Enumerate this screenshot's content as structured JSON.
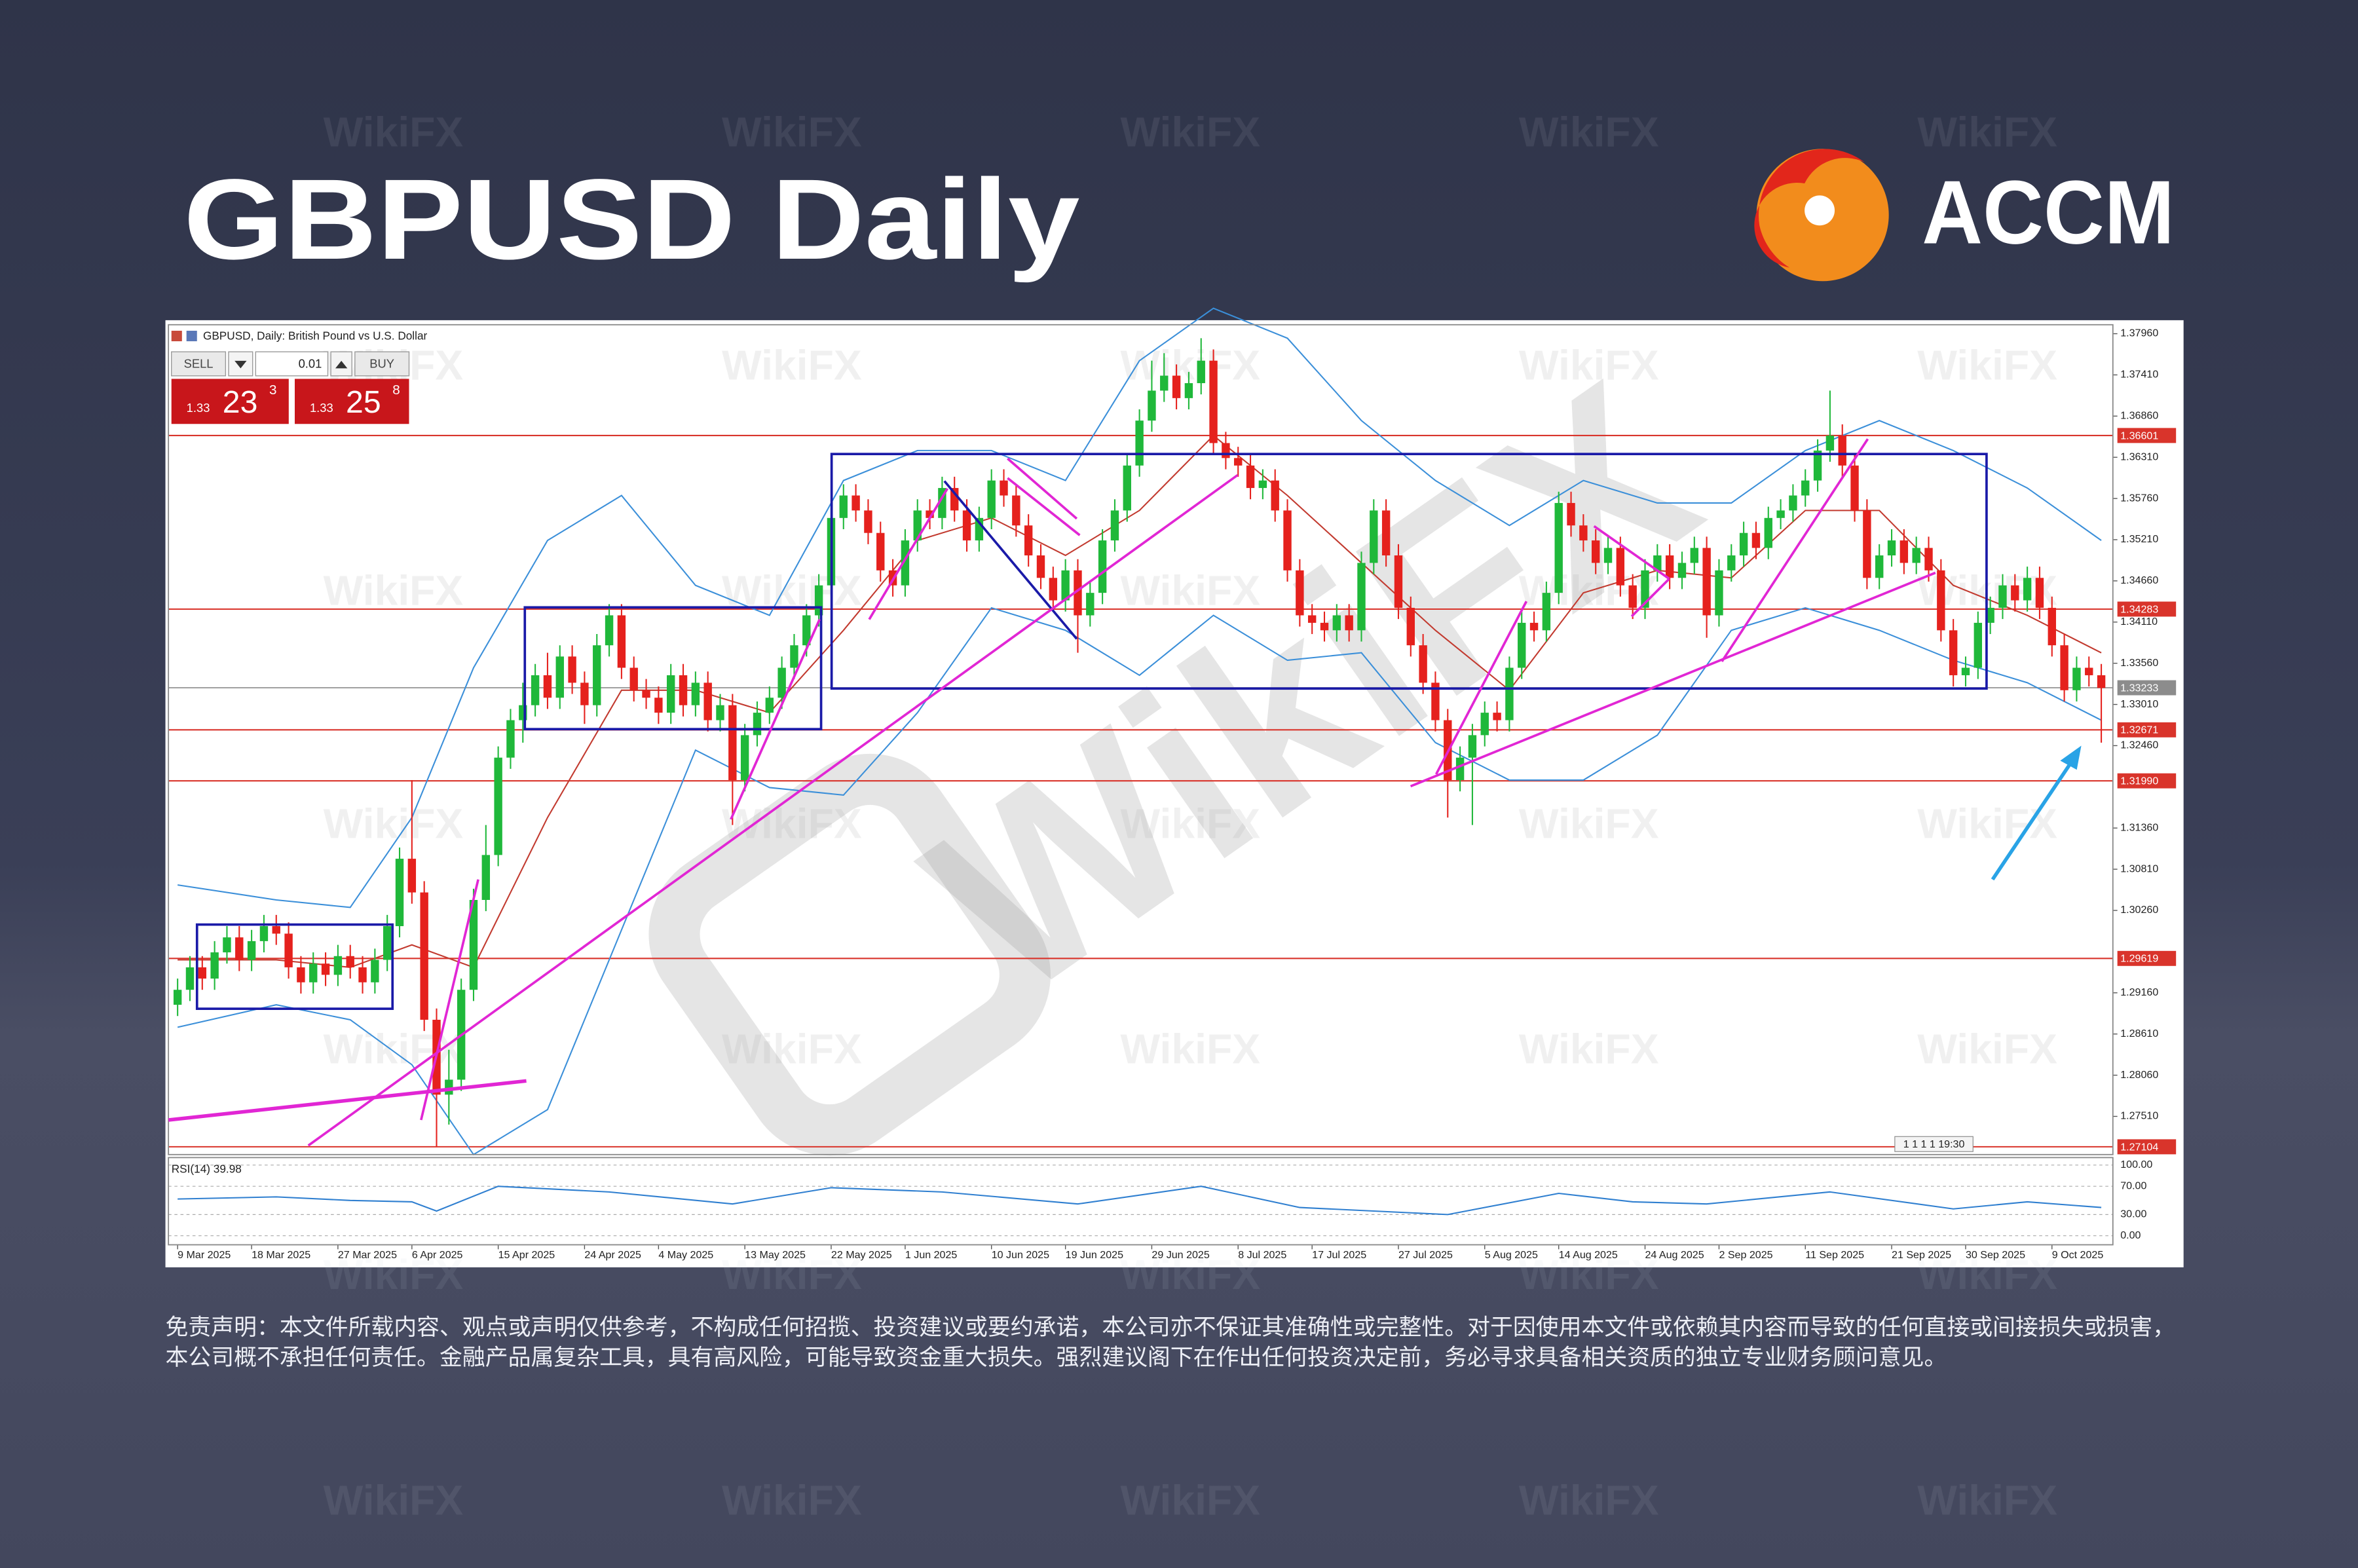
{
  "header": {
    "title": "GBPUSD Daily",
    "brand": "ACCM"
  },
  "watermark": "WikiFX",
  "chart_data": {
    "type": "candlestick",
    "title": "GBPUSD, Daily: British Pound vs U.S. Dollar",
    "trade_panel": {
      "sell": "SELL",
      "lot": "0.01",
      "buy": "BUY",
      "bid": [
        "1.33",
        "23",
        "3"
      ],
      "ask": [
        "1.33",
        "25",
        "8"
      ]
    },
    "open": [
      1.29,
      1.292,
      1.295,
      1.2935,
      1.297,
      1.299,
      1.296,
      1.2985,
      1.3005,
      1.2995,
      1.295,
      1.293,
      1.2955,
      1.294,
      1.2965,
      1.295,
      1.293,
      1.296,
      1.3005,
      1.3095,
      1.305,
      1.288,
      1.278,
      1.28,
      1.292,
      1.304,
      1.31,
      1.323,
      1.328,
      1.33,
      1.334,
      1.331,
      1.3365,
      1.333,
      1.33,
      1.338,
      1.342,
      1.335,
      1.332,
      1.331,
      1.329,
      1.334,
      1.33,
      1.333,
      1.328,
      1.33,
      1.32,
      1.326,
      1.329,
      1.331,
      1.335,
      1.338,
      1.342,
      1.346,
      1.355,
      1.358,
      1.356,
      1.353,
      1.348,
      1.346,
      1.352,
      1.356,
      1.355,
      1.359,
      1.356,
      1.352,
      1.355,
      1.36,
      1.358,
      1.354,
      1.35,
      1.347,
      1.344,
      1.348,
      1.342,
      1.345,
      1.352,
      1.356,
      1.362,
      1.368,
      1.372,
      1.374,
      1.371,
      1.373,
      1.376,
      1.365,
      1.363,
      1.362,
      1.359,
      1.36,
      1.356,
      1.348,
      1.342,
      1.341,
      1.34,
      1.342,
      1.34,
      1.349,
      1.356,
      1.35,
      1.343,
      1.338,
      1.333,
      1.328,
      1.32,
      1.323,
      1.326,
      1.329,
      1.328,
      1.335,
      1.341,
      1.34,
      1.345,
      1.357,
      1.354,
      1.352,
      1.349,
      1.351,
      1.346,
      1.343,
      1.348,
      1.35,
      1.347,
      1.349,
      1.351,
      1.342,
      1.348,
      1.35,
      1.353,
      1.351,
      1.355,
      1.356,
      1.358,
      1.36,
      1.364,
      1.366,
      1.362,
      1.356,
      1.347,
      1.35,
      1.352,
      1.349,
      1.351,
      1.348,
      1.34,
      1.334,
      1.335,
      1.341,
      1.343,
      1.346,
      1.344,
      1.347,
      1.343,
      1.338,
      1.332,
      1.335,
      1.334
    ],
    "high": [
      1.2935,
      1.2965,
      1.2965,
      1.2985,
      1.3005,
      1.3005,
      1.3,
      1.302,
      1.302,
      1.301,
      1.2965,
      1.297,
      1.297,
      1.298,
      1.298,
      1.2965,
      1.2975,
      1.302,
      1.311,
      1.32,
      1.3065,
      1.2895,
      1.284,
      1.2935,
      1.3055,
      1.314,
      1.3245,
      1.3295,
      1.333,
      1.3355,
      1.337,
      1.338,
      1.338,
      1.3345,
      1.3395,
      1.3435,
      1.3435,
      1.3365,
      1.3335,
      1.3325,
      1.3355,
      1.3355,
      1.3345,
      1.3345,
      1.3315,
      1.3315,
      1.3275,
      1.3305,
      1.3325,
      1.3365,
      1.3395,
      1.3435,
      1.3475,
      1.3565,
      1.3595,
      1.3595,
      1.3575,
      1.3545,
      1.3495,
      1.3535,
      1.3575,
      1.3575,
      1.3605,
      1.3605,
      1.3575,
      1.3565,
      1.3615,
      1.3615,
      1.3595,
      1.3555,
      1.3515,
      1.3485,
      1.3495,
      1.3495,
      1.3465,
      1.3535,
      1.3575,
      1.3635,
      1.3695,
      1.376,
      1.377,
      1.3755,
      1.3745,
      1.379,
      1.3775,
      1.3665,
      1.3645,
      1.3635,
      1.3615,
      1.3615,
      1.3575,
      1.3495,
      1.3435,
      1.3425,
      1.3435,
      1.3435,
      1.3505,
      1.3575,
      1.3575,
      1.3515,
      1.3445,
      1.3395,
      1.3345,
      1.3295,
      1.3245,
      1.3275,
      1.3305,
      1.3305,
      1.3365,
      1.3425,
      1.3425,
      1.3465,
      1.3585,
      1.3585,
      1.3555,
      1.3535,
      1.3525,
      1.3525,
      1.3475,
      1.3495,
      1.3515,
      1.3515,
      1.3505,
      1.3525,
      1.3525,
      1.3495,
      1.3515,
      1.3545,
      1.3545,
      1.3565,
      1.3575,
      1.3595,
      1.3615,
      1.3655,
      1.372,
      1.3675,
      1.3635,
      1.3575,
      1.3515,
      1.3535,
      1.3535,
      1.3525,
      1.3525,
      1.3495,
      1.3415,
      1.3365,
      1.3425,
      1.3445,
      1.3475,
      1.3475,
      1.3485,
      1.3485,
      1.3445,
      1.3395,
      1.3365,
      1.3365,
      1.3355
    ],
    "low": [
      1.2885,
      1.2905,
      1.292,
      1.292,
      1.2955,
      1.2945,
      1.2945,
      1.297,
      1.298,
      1.2935,
      1.2915,
      1.2915,
      1.2925,
      1.2925,
      1.2935,
      1.2915,
      1.2915,
      1.2945,
      1.299,
      1.3035,
      1.2865,
      1.271,
      1.274,
      1.2785,
      1.2905,
      1.3025,
      1.3085,
      1.3215,
      1.325,
      1.3285,
      1.3295,
      1.3295,
      1.3315,
      1.3275,
      1.3285,
      1.3365,
      1.3335,
      1.3305,
      1.3295,
      1.3275,
      1.3275,
      1.3285,
      1.3285,
      1.3265,
      1.3265,
      1.314,
      1.3185,
      1.3245,
      1.3275,
      1.3295,
      1.3335,
      1.3365,
      1.3405,
      1.3445,
      1.3535,
      1.3545,
      1.3515,
      1.3465,
      1.3445,
      1.3445,
      1.3505,
      1.3535,
      1.3535,
      1.3545,
      1.3505,
      1.3505,
      1.3535,
      1.3565,
      1.3525,
      1.3485,
      1.3455,
      1.3425,
      1.3425,
      1.337,
      1.3405,
      1.3435,
      1.3505,
      1.3545,
      1.3605,
      1.3665,
      1.3705,
      1.3695,
      1.3695,
      1.3715,
      1.3635,
      1.3615,
      1.3605,
      1.3575,
      1.3575,
      1.3545,
      1.3465,
      1.3405,
      1.3395,
      1.3385,
      1.3385,
      1.3385,
      1.3385,
      1.3475,
      1.3485,
      1.3415,
      1.3365,
      1.3315,
      1.3265,
      1.315,
      1.3185,
      1.314,
      1.3245,
      1.3265,
      1.3265,
      1.3335,
      1.3385,
      1.3385,
      1.3435,
      1.3525,
      1.3505,
      1.3475,
      1.3475,
      1.3445,
      1.3415,
      1.3415,
      1.3465,
      1.3455,
      1.3455,
      1.3475,
      1.339,
      1.3405,
      1.3465,
      1.3485,
      1.3495,
      1.3495,
      1.3535,
      1.3545,
      1.3565,
      1.3585,
      1.3625,
      1.3605,
      1.3545,
      1.3455,
      1.3455,
      1.3485,
      1.3475,
      1.3475,
      1.3465,
      1.3385,
      1.3325,
      1.3325,
      1.3335,
      1.3395,
      1.3415,
      1.3425,
      1.3425,
      1.3415,
      1.3365,
      1.3305,
      1.3305,
      1.3325,
      1.325
    ],
    "close": [
      1.292,
      1.295,
      1.2935,
      1.297,
      1.299,
      1.296,
      1.2985,
      1.3005,
      1.2995,
      1.295,
      1.293,
      1.2955,
      1.294,
      1.2965,
      1.295,
      1.293,
      1.296,
      1.3005,
      1.3095,
      1.305,
      1.288,
      1.278,
      1.28,
      1.292,
      1.304,
      1.31,
      1.323,
      1.328,
      1.33,
      1.334,
      1.331,
      1.3365,
      1.333,
      1.33,
      1.338,
      1.342,
      1.335,
      1.332,
      1.331,
      1.329,
      1.334,
      1.33,
      1.333,
      1.328,
      1.33,
      1.32,
      1.326,
      1.329,
      1.331,
      1.335,
      1.338,
      1.342,
      1.346,
      1.355,
      1.358,
      1.356,
      1.353,
      1.348,
      1.346,
      1.352,
      1.356,
      1.355,
      1.359,
      1.356,
      1.352,
      1.355,
      1.36,
      1.358,
      1.354,
      1.35,
      1.347,
      1.344,
      1.348,
      1.342,
      1.345,
      1.352,
      1.356,
      1.362,
      1.368,
      1.372,
      1.374,
      1.371,
      1.373,
      1.376,
      1.365,
      1.363,
      1.362,
      1.359,
      1.36,
      1.356,
      1.348,
      1.342,
      1.341,
      1.34,
      1.342,
      1.34,
      1.349,
      1.356,
      1.35,
      1.343,
      1.338,
      1.333,
      1.328,
      1.32,
      1.323,
      1.326,
      1.329,
      1.328,
      1.335,
      1.341,
      1.34,
      1.345,
      1.357,
      1.354,
      1.352,
      1.349,
      1.351,
      1.346,
      1.343,
      1.348,
      1.35,
      1.347,
      1.349,
      1.351,
      1.342,
      1.348,
      1.35,
      1.353,
      1.351,
      1.355,
      1.356,
      1.358,
      1.36,
      1.364,
      1.366,
      1.362,
      1.356,
      1.347,
      1.35,
      1.352,
      1.349,
      1.351,
      1.348,
      1.34,
      1.334,
      1.335,
      1.341,
      1.343,
      1.346,
      1.344,
      1.347,
      1.343,
      1.338,
      1.332,
      1.335,
      1.334,
      1.3323
    ],
    "up_color": "#1fb83a",
    "down_color": "#e5211d",
    "xlim": [
      -0.744,
      156.94
    ],
    "ylim": [
      1.27,
      1.3808
    ],
    "yticks": [
      {
        "value": 1.3796,
        "label": "1.37960"
      },
      {
        "value": 1.3741,
        "label": "1.37410"
      },
      {
        "value": 1.3686,
        "label": "1.36860"
      },
      {
        "value": 1.3631,
        "label": "1.36310"
      },
      {
        "value": 1.3576,
        "label": "1.35760"
      },
      {
        "value": 1.3521,
        "label": "1.35210"
      },
      {
        "value": 1.3466,
        "label": "1.34660"
      },
      {
        "value": 1.3411,
        "label": "1.34110"
      },
      {
        "value": 1.3356,
        "label": "1.33560"
      },
      {
        "value": 1.3301,
        "label": "1.33010"
      },
      {
        "value": 1.3246,
        "label": "1.32460"
      },
      {
        "value": 1.3136,
        "label": "1.31360"
      },
      {
        "value": 1.3081,
        "label": "1.30810"
      },
      {
        "value": 1.3026,
        "label": "1.30260"
      },
      {
        "value": 1.2916,
        "label": "1.29160"
      },
      {
        "value": 1.2861,
        "label": "1.28610"
      },
      {
        "value": 1.2806,
        "label": "1.28060"
      },
      {
        "value": 1.2751,
        "label": "1.27510"
      }
    ],
    "levels": [
      1.36601,
      1.34283,
      1.32671,
      {
        "value": 1.3199,
        "label": "1.31990"
      },
      1.29619,
      1.27104
    ],
    "level_color": "#d9342b",
    "current": 1.33233,
    "xticks": [
      {
        "value": 0,
        "label": "9 Mar 2025"
      },
      {
        "value": 6,
        "label": "18 Mar 2025"
      },
      {
        "value": 13,
        "label": "27 Mar 2025"
      },
      {
        "value": 19,
        "label": "6 Apr 2025"
      },
      {
        "value": 26,
        "label": "15 Apr 2025"
      },
      {
        "value": 33,
        "label": "24 Apr 2025"
      },
      {
        "value": 39,
        "label": "4 May 2025"
      },
      {
        "value": 46,
        "label": "13 May 2025"
      },
      {
        "value": 53,
        "label": "22 May 2025"
      },
      {
        "value": 59,
        "label": "1 Jun 2025"
      },
      {
        "value": 66,
        "label": "10 Jun 2025"
      },
      {
        "value": 72,
        "label": "19 Jun 2025"
      },
      {
        "value": 79,
        "label": "29 Jun 2025"
      },
      {
        "value": 86,
        "label": "8 Jul 2025"
      },
      {
        "value": 92,
        "label": "17 Jul 2025"
      },
      {
        "value": 99,
        "label": "27 Jul 2025"
      },
      {
        "value": 106,
        "label": "5 Aug 2025"
      },
      {
        "value": 112,
        "label": "14 Aug 2025"
      },
      {
        "value": 119,
        "label": "24 Aug 2025"
      },
      {
        "value": 125,
        "label": "2 Sep 2025"
      },
      {
        "value": 132,
        "label": "11 Sep 2025"
      },
      {
        "value": 139,
        "label": "21 Sep 2025"
      },
      {
        "value": 145,
        "label": "30 Sep 2025"
      },
      {
        "value": 152,
        "label": "9 Oct 2025"
      }
    ],
    "bollinger_upper": {
      "color": "#3b8fd9",
      "x": [
        0,
        8,
        14,
        19,
        24,
        30,
        36,
        42,
        48,
        54,
        60,
        66,
        72,
        78,
        84,
        90,
        96,
        102,
        108,
        114,
        120,
        126,
        132,
        138,
        144,
        150,
        156
      ],
      "values": [
        1.306,
        1.304,
        1.303,
        1.315,
        1.335,
        1.352,
        1.358,
        1.346,
        1.342,
        1.36,
        1.364,
        1.364,
        1.36,
        1.376,
        1.383,
        1.379,
        1.368,
        1.36,
        1.354,
        1.36,
        1.357,
        1.357,
        1.364,
        1.368,
        1.364,
        1.359,
        1.352
      ]
    },
    "bollinger_lower": {
      "color": "#3b8fd9",
      "x": [
        0,
        8,
        14,
        19,
        24,
        30,
        36,
        42,
        48,
        54,
        60,
        66,
        72,
        78,
        84,
        90,
        96,
        102,
        108,
        114,
        120,
        126,
        132,
        138,
        144,
        150,
        156
      ],
      "values": [
        1.287,
        1.29,
        1.288,
        1.282,
        1.27,
        1.276,
        1.3,
        1.324,
        1.319,
        1.318,
        1.329,
        1.343,
        1.34,
        1.334,
        1.342,
        1.336,
        1.337,
        1.325,
        1.32,
        1.32,
        1.326,
        1.34,
        1.343,
        1.34,
        1.336,
        1.333,
        1.328
      ]
    },
    "moving_average": {
      "color": "#c23a2f",
      "x": [
        0,
        8,
        14,
        19,
        24,
        30,
        36,
        42,
        48,
        54,
        60,
        66,
        72,
        78,
        84,
        90,
        96,
        102,
        108,
        114,
        120,
        126,
        132,
        138,
        144,
        150,
        156
      ],
      "values": [
        1.296,
        1.296,
        1.295,
        1.298,
        1.295,
        1.315,
        1.332,
        1.332,
        1.329,
        1.34,
        1.352,
        1.355,
        1.35,
        1.356,
        1.366,
        1.358,
        1.349,
        1.34,
        1.332,
        1.345,
        1.348,
        1.347,
        1.356,
        1.356,
        1.346,
        1.342,
        1.337
      ]
    },
    "rsi": {
      "label": "RSI(14) 39.98",
      "color": "#2f7fd0",
      "ylim": [
        0,
        100
      ],
      "yticks": [
        {
          "value": 100,
          "label": "100.00"
        },
        {
          "value": 70,
          "label": "70.00"
        },
        {
          "value": 30,
          "label": "30.00"
        },
        {
          "value": 0,
          "label": "0.00"
        }
      ],
      "x": [
        0,
        8,
        14,
        19,
        21,
        26,
        35,
        45,
        53,
        62,
        73,
        83,
        91,
        103,
        112,
        118,
        124,
        134,
        144,
        150,
        156
      ],
      "values": [
        52,
        55,
        50,
        48,
        35,
        70,
        62,
        45,
        68,
        62,
        45,
        70,
        40,
        30,
        60,
        48,
        45,
        62,
        38,
        48,
        40
      ]
    },
    "timer": "1 1 1 1 19:30"
  },
  "disclaimer": "免责声明：本文件所载内容、观点或声明仅供参考，不构成任何招揽、投资建议或要约承诺，本公司亦不保证其准确性或完整性。对于因使用本文件或依赖其内容而导致的任何直接或间接损失或损害，本公司概不承担任何责任。金融产品属复杂工具，具有高风险，可能导致资金重大损失。强烈建议阁下在作出任何投资决定前，务必寻求具备相关资质的独立专业财务顾问意见。"
}
